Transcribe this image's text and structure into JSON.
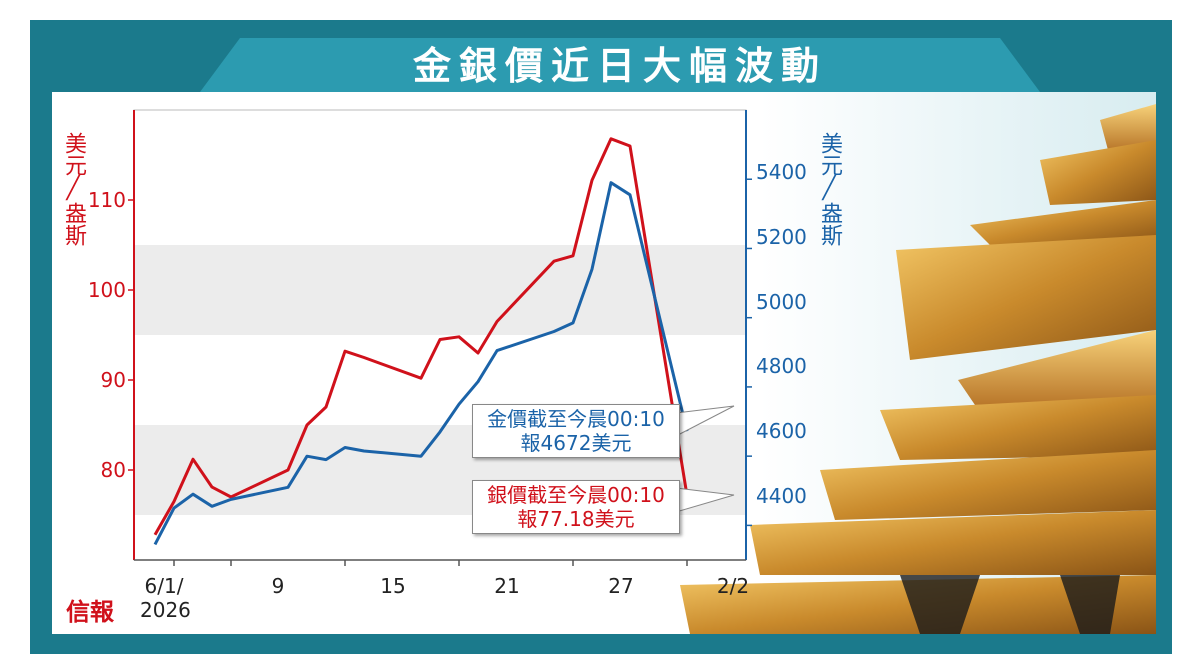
{
  "title": "金銀價近日大幅波動",
  "colors": {
    "gold": "#1b63a8",
    "silver": "#d0111b",
    "frame": "#1b7a8c",
    "grid_band": "#ececec"
  },
  "left_axis": {
    "unit_line1": "美元",
    "unit_line2": "盎斯",
    "ticks": [
      "110",
      "100",
      "90",
      "80"
    ]
  },
  "right_axis": {
    "unit_line1": "美元",
    "unit_line2": "盎斯",
    "ticks": [
      "5400",
      "5200",
      "5000",
      "4800",
      "4600",
      "4400"
    ]
  },
  "x_axis": {
    "ticks": [
      "6/1/",
      "9",
      "15",
      "21",
      "27",
      "2/2"
    ],
    "year": "2026"
  },
  "callouts": {
    "gold_line1": "金價截至今晨00:10",
    "gold_line2": "報4672美元",
    "silver_line1": "銀價截至今晨00:10",
    "silver_line2": "報77.18美元"
  },
  "logo": "信報",
  "chart_data": {
    "type": "line",
    "title": "金銀價近日大幅波動",
    "x": [
      "2026-01-05",
      "2026-01-06",
      "2026-01-07",
      "2026-01-08",
      "2026-01-09",
      "2026-01-12",
      "2026-01-13",
      "2026-01-14",
      "2026-01-15",
      "2026-01-16",
      "2026-01-19",
      "2026-01-20",
      "2026-01-21",
      "2026-01-22",
      "2026-01-23",
      "2026-01-26",
      "2026-01-27",
      "2026-01-28",
      "2026-01-29",
      "2026-01-30",
      "2026-02-02"
    ],
    "series": [
      {
        "axis": "left",
        "values": [
          72.8,
          76.5,
          81.2,
          78.1,
          77.0,
          80.0,
          85.0,
          87.0,
          93.2,
          92.5,
          90.2,
          94.5,
          94.8,
          93.0,
          96.5,
          103.2,
          103.8,
          112.2,
          116.8,
          116.0,
          77.18
        ]
      },
      {
        "axis": "right",
        "values": [
          4345,
          4450,
          4490,
          4455,
          4475,
          4510,
          4600,
          4590,
          4625,
          4615,
          4600,
          4670,
          4750,
          4815,
          4905,
          4960,
          4985,
          5140,
          5390,
          5355,
          4672
        ]
      }
    ],
    "x_tick_labels": [
      "6/1/ 2026",
      "9",
      "15",
      "21",
      "27",
      "2/2"
    ],
    "y_left": {
      "label": "美元/盎斯",
      "ylim": [
        70,
        120
      ],
      "ticks": [
        80,
        90,
        100,
        110
      ]
    },
    "y_right": {
      "label": "美元/盎斯",
      "ylim": [
        4300,
        5600
      ],
      "ticks": [
        4400,
        4600,
        4800,
        5000,
        5200,
        5400
      ]
    },
    "grid": "horizontal-bands",
    "legend": "none"
  }
}
